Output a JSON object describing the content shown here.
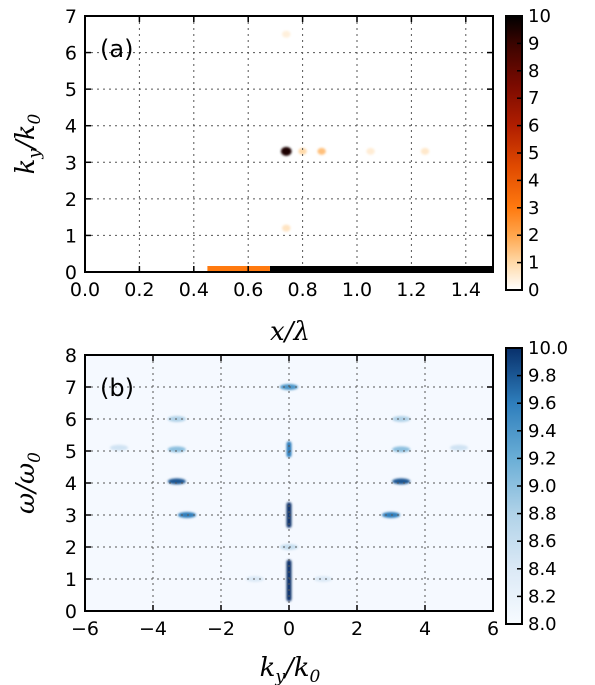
{
  "chart_data": [
    {
      "type": "heatmap",
      "panel_label": "(a)",
      "xlabel": "x/λ",
      "ylabel": "k_y/k_0",
      "xlim": [
        0.0,
        1.5
      ],
      "ylim": [
        0,
        7
      ],
      "x_ticks": [
        "0.0",
        "0.2",
        "0.4",
        "0.6",
        "0.8",
        "1.0",
        "1.2",
        "1.4"
      ],
      "y_ticks": [
        "0",
        "1",
        "2",
        "3",
        "4",
        "5",
        "6",
        "7"
      ],
      "grid": true,
      "colormap": "orange-to-black (gist_heat_r)",
      "colorbar": {
        "min": 0,
        "max": 10,
        "ticks": [
          "0",
          "1",
          "2",
          "3",
          "4",
          "5",
          "6",
          "7",
          "8",
          "9",
          "10"
        ]
      },
      "features": [
        {
          "x": 0.74,
          "y": 3.3,
          "value": 9.5
        },
        {
          "x": 0.87,
          "y": 3.3,
          "value": 1.5
        },
        {
          "x": 0.8,
          "y": 3.3,
          "value": 1.0
        },
        {
          "x": 1.25,
          "y": 3.3,
          "value": 0.6
        },
        {
          "x": 1.05,
          "y": 3.3,
          "value": 0.5
        },
        {
          "x": 0.74,
          "y": 1.2,
          "value": 0.7
        },
        {
          "x": 0.74,
          "y": 6.5,
          "value": 0.4
        },
        {
          "x_range": [
            0.68,
            1.5
          ],
          "y": 0.0,
          "value": 10
        },
        {
          "x_range": [
            0.45,
            0.68
          ],
          "y": 0.0,
          "value": 3
        }
      ]
    },
    {
      "type": "heatmap",
      "panel_label": "(b)",
      "xlabel": "k_y/k_0",
      "ylabel": "ω/ω_0",
      "xlim": [
        -6,
        6
      ],
      "ylim": [
        0,
        8
      ],
      "x_ticks": [
        "−6",
        "−4",
        "−2",
        "0",
        "2",
        "4",
        "6"
      ],
      "y_ticks": [
        "0",
        "1",
        "2",
        "3",
        "4",
        "5",
        "6",
        "7",
        "8"
      ],
      "grid": true,
      "colormap": "Blues",
      "colorbar": {
        "min": 8.0,
        "max": 10.0,
        "ticks": [
          "8.0",
          "8.2",
          "8.4",
          "8.6",
          "8.8",
          "9.0",
          "9.2",
          "9.4",
          "9.6",
          "9.8",
          "10.0"
        ]
      },
      "features": [
        {
          "x": 0,
          "y_range": [
            0.3,
            1.6
          ],
          "value": 10.0
        },
        {
          "x": 0,
          "y_range": [
            2.6,
            3.4
          ],
          "value": 10.0
        },
        {
          "x": 0,
          "y_range": [
            4.8,
            5.3
          ],
          "value": 9.6
        },
        {
          "x": 0,
          "y": 7.0,
          "value": 9.4
        },
        {
          "x": 0,
          "y": 2.0,
          "value": 8.6
        },
        {
          "x": 3.3,
          "y": 4.05,
          "value": 9.8
        },
        {
          "x": -3.3,
          "y": 4.05,
          "value": 9.8
        },
        {
          "x": 3.0,
          "y": 3.0,
          "value": 9.6
        },
        {
          "x": -3.0,
          "y": 3.0,
          "value": 9.6
        },
        {
          "x": 3.3,
          "y": 5.05,
          "value": 9.0
        },
        {
          "x": -3.3,
          "y": 5.05,
          "value": 9.0
        },
        {
          "x": 3.3,
          "y": 6.0,
          "value": 8.8
        },
        {
          "x": -3.3,
          "y": 6.0,
          "value": 8.8
        },
        {
          "x": 5.0,
          "y": 5.1,
          "value": 8.5
        },
        {
          "x": -5.0,
          "y": 5.1,
          "value": 8.5
        },
        {
          "x": 1.0,
          "y": 1.0,
          "value": 8.4
        },
        {
          "x": -1.0,
          "y": 1.0,
          "value": 8.4
        }
      ]
    }
  ]
}
